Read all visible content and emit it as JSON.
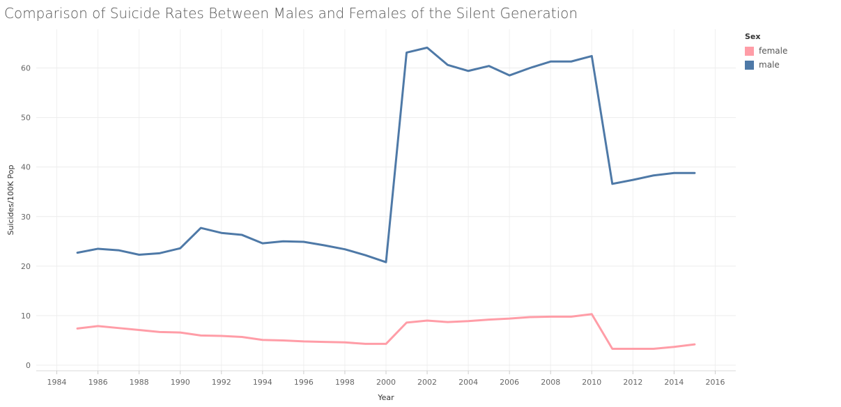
{
  "title": "Comparison of Suicide Rates Between Males and Females of the Silent Generation",
  "legend": {
    "title": "Sex",
    "items": [
      {
        "label": "female",
        "color": "#ff9da7"
      },
      {
        "label": "male",
        "color": "#4e79a7"
      }
    ]
  },
  "chart_data": {
    "type": "line",
    "title": "Comparison of Suicide Rates Between Males and Females of the Silent Generation",
    "xlabel": "Year",
    "ylabel": "Suicides/100K Pop",
    "xlim": [
      1983,
      2017
    ],
    "ylim": [
      0,
      66
    ],
    "xticks": [
      1984,
      1986,
      1988,
      1990,
      1992,
      1994,
      1996,
      1998,
      2000,
      2002,
      2004,
      2006,
      2008,
      2010,
      2012,
      2014,
      2016
    ],
    "yticks": [
      0,
      10,
      20,
      30,
      40,
      50,
      60
    ],
    "grid": true,
    "legend_position": "top-right",
    "series": [
      {
        "name": "female",
        "color": "#ff9da7",
        "x": [
          1985,
          1986,
          1987,
          1988,
          1989,
          1990,
          1991,
          1992,
          1993,
          1994,
          1995,
          1996,
          1997,
          1998,
          1999,
          2000,
          2001,
          2002,
          2003,
          2004,
          2005,
          2006,
          2007,
          2008,
          2009,
          2010,
          2011,
          2012,
          2013,
          2014,
          2015
        ],
        "y": [
          7.4,
          7.9,
          7.5,
          7.1,
          6.7,
          6.6,
          6.0,
          5.9,
          5.7,
          5.1,
          5.0,
          4.8,
          4.7,
          4.6,
          4.3,
          4.3,
          8.6,
          9.0,
          8.7,
          8.9,
          9.2,
          9.4,
          9.7,
          9.8,
          9.8,
          10.3,
          3.3,
          3.3,
          3.3,
          3.7,
          4.2
        ]
      },
      {
        "name": "male",
        "color": "#4e79a7",
        "x": [
          1985,
          1986,
          1987,
          1988,
          1989,
          1990,
          1991,
          1992,
          1993,
          1994,
          1995,
          1996,
          1997,
          1998,
          1999,
          2000,
          2001,
          2002,
          2003,
          2004,
          2005,
          2006,
          2007,
          2008,
          2009,
          2010,
          2011,
          2012,
          2013,
          2014,
          2015
        ],
        "y": [
          22.7,
          23.5,
          23.2,
          22.3,
          22.6,
          23.6,
          27.7,
          26.7,
          26.3,
          24.6,
          25.0,
          24.9,
          24.2,
          23.4,
          22.2,
          20.8,
          63.1,
          64.1,
          60.6,
          59.4,
          60.4,
          58.5,
          60.0,
          61.3,
          61.3,
          62.4,
          36.6,
          37.4,
          38.3,
          38.8,
          38.8
        ]
      }
    ]
  }
}
